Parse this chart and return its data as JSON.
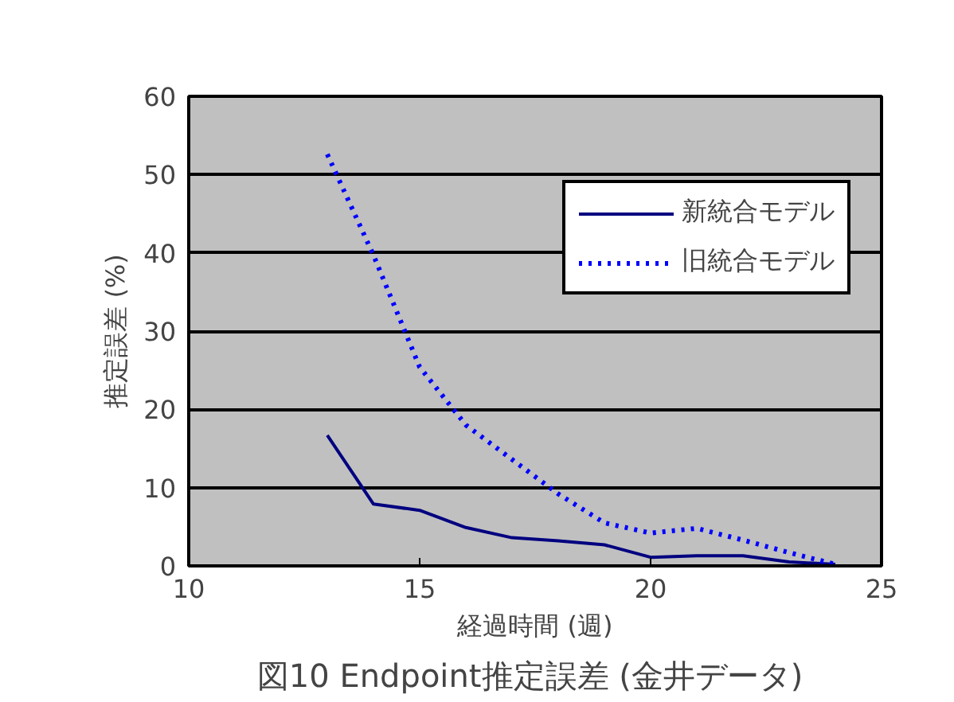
{
  "chart_data": {
    "type": "line",
    "title": "図10  Endpoint推定誤差 (金井データ)",
    "xlabel": "経過時間 (週)",
    "ylabel": "推定誤差 (%)",
    "x": [
      13,
      14,
      15,
      16,
      17,
      18,
      19,
      20,
      21,
      22,
      23,
      24
    ],
    "series": [
      {
        "name": "新統合モデル",
        "color": "#000080",
        "line_style": "solid",
        "values": [
          16.7,
          7.9,
          7.1,
          4.9,
          3.6,
          3.2,
          2.7,
          1.1,
          1.3,
          1.3,
          0.5,
          0.2
        ]
      },
      {
        "name": "旧統合モデル",
        "color": "#0000ff",
        "line_style": "dotted",
        "values": [
          52.6,
          39.7,
          25.4,
          18,
          13.6,
          9.2,
          5.5,
          4.2,
          4.8,
          3.3,
          1.7,
          0.2
        ]
      }
    ],
    "xlim": [
      10,
      25
    ],
    "xticks": [
      10,
      15,
      20,
      25
    ],
    "ylim": [
      0,
      60
    ],
    "yticks": [
      0,
      10,
      20,
      30,
      40,
      50,
      60
    ],
    "grid": "y",
    "legend": "top right",
    "marker": "none"
  }
}
